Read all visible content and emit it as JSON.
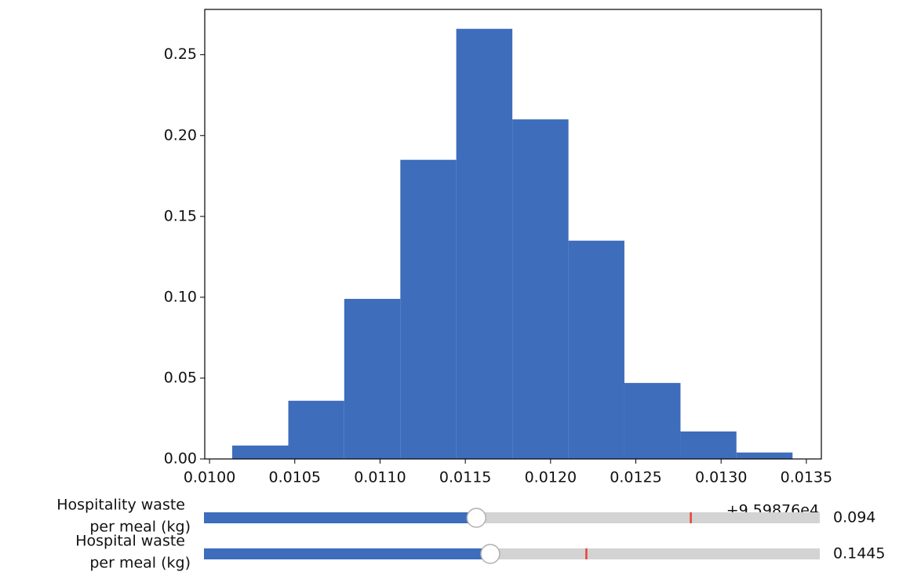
{
  "chart_data": {
    "type": "histogram",
    "bins": [
      0.010133,
      0.010462,
      0.01079,
      0.011119,
      0.011447,
      0.011776,
      0.012105,
      0.012433,
      0.012762,
      0.01309,
      0.013419
    ],
    "values": [
      0.0083,
      0.036,
      0.099,
      0.185,
      0.266,
      0.21,
      0.135,
      0.047,
      0.017,
      0.004
    ],
    "color": "#3d6dbb",
    "xlim": [
      0.009972,
      0.013588
    ],
    "ylim": [
      0,
      0.278
    ],
    "xticks": [
      {
        "value": 0.01,
        "label": "0.0100"
      },
      {
        "value": 0.0105,
        "label": "0.0105"
      },
      {
        "value": 0.011,
        "label": "0.0110"
      },
      {
        "value": 0.0115,
        "label": "0.0115"
      },
      {
        "value": 0.012,
        "label": "0.0120"
      },
      {
        "value": 0.0125,
        "label": "0.0125"
      },
      {
        "value": 0.013,
        "label": "0.0130"
      },
      {
        "value": 0.0135,
        "label": "0.0135"
      }
    ],
    "yticks": [
      {
        "value": 0,
        "label": "0.00"
      },
      {
        "value": 0.05,
        "label": "0.05"
      },
      {
        "value": 0.1,
        "label": "0.10"
      },
      {
        "value": 0.15,
        "label": "0.15"
      },
      {
        "value": 0.2,
        "label": "0.20"
      },
      {
        "value": 0.25,
        "label": "0.25"
      }
    ],
    "x_offset_label": "+9.59876e4",
    "sliders": [
      {
        "label": [
          "Hospitality waste",
          "per meal (kg)"
        ],
        "value": 0.094,
        "value_label": "0.094",
        "min": 0,
        "max": 0.2125,
        "init": 0.168,
        "color": "#3d6dbb",
        "init_color": "#e8413a"
      },
      {
        "label": [
          "Hospital waste",
          "per meal (kg)"
        ],
        "value": 0.1445,
        "value_label": "0.1445",
        "min": 0,
        "max": 0.3108,
        "init": 0.193,
        "color": "#3d6dbb",
        "init_color": "#e8413a"
      }
    ]
  }
}
